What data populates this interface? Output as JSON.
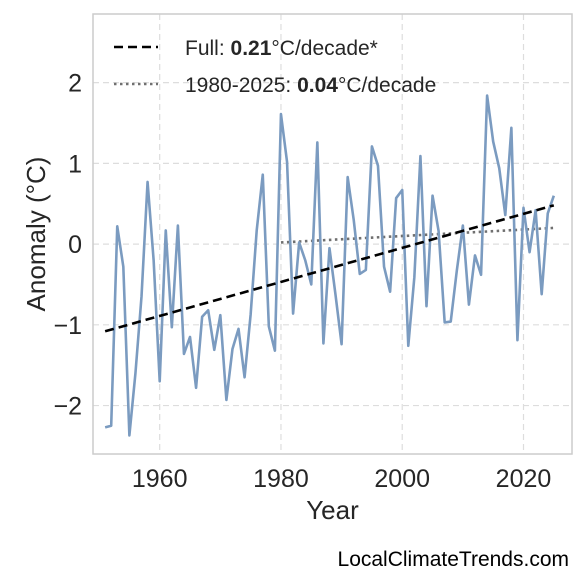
{
  "chart_data": {
    "type": "line",
    "title": "",
    "xlabel": "Year",
    "ylabel": "Anomaly (°C)",
    "xlim": [
      1949,
      2028
    ],
    "ylim": [
      -2.6,
      2.85
    ],
    "x_ticks": [
      1960,
      1980,
      2000,
      2020
    ],
    "y_ticks": [
      2,
      1,
      0,
      -1,
      -2
    ],
    "x_tick_labels": [
      "1960",
      "1980",
      "2000",
      "2020"
    ],
    "y_tick_labels": [
      "2",
      "1",
      "0",
      "−1",
      "−2"
    ],
    "grid": true,
    "legend_position": "top-left",
    "colors": {
      "series": "#7b9bc0",
      "full_trend": "#000000",
      "recent_trend": "#707070",
      "grid": "#dddddd",
      "frame": "#cccccc"
    },
    "series": [
      {
        "x": [
          1951,
          1952,
          1953,
          1954,
          1955,
          1956,
          1957,
          1958,
          1959,
          1960,
          1961,
          1962,
          1963,
          1964,
          1965,
          1966,
          1967,
          1968,
          1969,
          1970,
          1971,
          1972,
          1973,
          1974,
          1975,
          1976,
          1977,
          1978,
          1979,
          1980,
          1981,
          1982,
          1983,
          1984,
          1985,
          1986,
          1987,
          1988,
          1989,
          1990,
          1991,
          1992,
          1993,
          1994,
          1995,
          1996,
          1997,
          1998,
          1999,
          2000,
          2001,
          2002,
          2003,
          2004,
          2005,
          2006,
          2007,
          2008,
          2009,
          2010,
          2011,
          2012,
          2013,
          2014,
          2015,
          2016,
          2017,
          2018,
          2019,
          2020,
          2021,
          2022,
          2023,
          2024,
          2025
        ],
        "y": [
          -2.27,
          -2.25,
          0.22,
          -0.28,
          -2.37,
          -1.6,
          -0.65,
          0.77,
          -0.2,
          -1.7,
          0.17,
          -1.03,
          0.23,
          -1.36,
          -1.15,
          -1.78,
          -0.9,
          -0.82,
          -1.31,
          -0.88,
          -1.93,
          -1.3,
          -1.05,
          -1.65,
          -0.87,
          0.17,
          0.86,
          -1.02,
          -1.32,
          1.61,
          1.02,
          -0.86,
          0.02,
          -0.2,
          -0.5,
          1.26,
          -1.23,
          -0.05,
          -0.63,
          -1.24,
          0.83,
          0.3,
          -0.37,
          -0.32,
          1.21,
          0.97,
          -0.28,
          -0.59,
          0.57,
          0.67,
          -1.26,
          -0.41,
          1.09,
          -0.77,
          0.6,
          0.16,
          -0.97,
          -0.96,
          -0.33,
          0.23,
          -0.75,
          -0.14,
          -0.38,
          1.84,
          1.27,
          0.94,
          0.36,
          1.44,
          -1.19,
          0.45,
          -0.1,
          0.42,
          -0.62,
          0.38,
          0.6
        ]
      },
      {
        "x": [
          1951,
          2025
        ],
        "y": [
          -1.08,
          0.48
        ]
      },
      {
        "x": [
          1980,
          2025
        ],
        "y": [
          0.02,
          0.2
        ]
      }
    ],
    "legend": [
      {
        "style": "dashed",
        "prefix": "Full: ",
        "value": "0.21",
        "suffix": "°C/decade*"
      },
      {
        "style": "dotted",
        "prefix": "1980-2025: ",
        "value": "0.04",
        "suffix": "°C/decade"
      }
    ]
  },
  "source_label": "LocalClimateTrends.com"
}
